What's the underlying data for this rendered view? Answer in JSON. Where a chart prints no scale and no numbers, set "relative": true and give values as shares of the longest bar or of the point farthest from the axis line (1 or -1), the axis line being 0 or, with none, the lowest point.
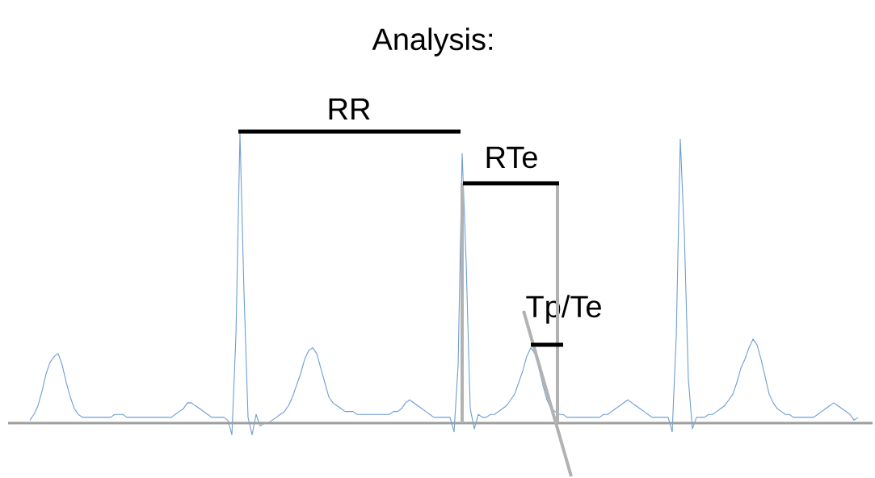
{
  "chart_data": {
    "type": "line",
    "title": "Analysis:",
    "annotations": [
      "RR",
      "RTe",
      "Tp/Te"
    ],
    "relative": true,
    "categories": [
      null,
      null,
      null,
      null,
      null,
      null,
      null,
      null,
      null,
      null,
      null,
      null,
      null,
      null,
      null,
      null,
      null,
      null,
      null,
      null,
      null,
      null,
      null,
      null,
      null,
      null,
      null,
      null,
      null,
      null,
      null,
      null,
      null,
      null,
      null,
      null,
      null,
      null,
      null,
      null,
      null,
      null,
      null,
      null,
      null,
      null,
      null,
      null,
      null,
      null,
      null,
      null,
      null,
      null,
      null,
      null,
      null,
      null,
      null,
      null,
      null,
      null,
      null,
      null,
      null,
      null,
      null,
      null,
      null,
      null,
      null,
      null,
      null,
      null,
      null,
      null,
      null,
      null,
      null,
      null,
      null,
      null,
      null,
      null,
      null,
      null,
      null,
      null,
      null,
      null,
      null,
      null,
      null,
      null,
      null,
      null,
      null,
      null,
      null,
      null,
      null,
      null,
      null,
      null,
      null,
      null,
      null,
      null,
      null,
      null,
      null,
      null,
      null,
      null,
      null,
      null,
      null,
      null,
      null,
      null,
      null,
      null,
      null,
      null,
      null,
      null,
      null,
      null,
      null,
      null,
      null,
      null,
      null,
      null,
      null,
      null,
      null,
      null,
      null,
      null,
      null,
      null,
      null,
      null,
      null,
      null,
      null,
      null,
      null,
      null,
      null,
      null,
      null,
      null,
      null,
      null,
      null,
      null,
      null,
      null,
      null,
      null,
      null,
      null,
      null,
      null,
      null,
      null,
      null,
      null,
      null,
      null,
      null,
      null,
      null,
      null,
      null,
      null,
      null,
      null,
      null,
      null,
      null,
      null,
      null,
      null,
      null,
      null,
      null,
      null,
      null,
      null,
      null,
      null,
      null,
      null,
      null,
      null,
      null,
      null,
      null,
      null,
      null,
      null,
      null,
      null
    ],
    "series": [
      {
        "color": "#6d9ed4",
        "values": [
          0.01,
          0.03,
          0.06,
          0.11,
          0.17,
          0.21,
          0.23,
          0.24,
          0.2,
          0.14,
          0.09,
          0.05,
          0.03,
          0.02,
          0.02,
          0.02,
          0.02,
          0.02,
          0.02,
          0.02,
          0.02,
          0.03,
          0.03,
          0.03,
          0.02,
          0.02,
          0.02,
          0.02,
          0.02,
          0.02,
          0.02,
          0.02,
          0.02,
          0.02,
          0.02,
          0.02,
          0.03,
          0.04,
          0.05,
          0.07,
          0.07,
          0.06,
          0.05,
          0.04,
          0.03,
          0.02,
          0.02,
          0.02,
          0.02,
          0.01,
          -0.04,
          0.3,
          1.0,
          0.45,
          0.02,
          -0.04,
          0.03,
          -0.01,
          0.0,
          0.0,
          0.01,
          0.02,
          0.03,
          0.04,
          0.06,
          0.09,
          0.13,
          0.17,
          0.22,
          0.25,
          0.26,
          0.24,
          0.19,
          0.14,
          0.09,
          0.07,
          0.06,
          0.05,
          0.04,
          0.04,
          0.04,
          0.03,
          0.03,
          0.03,
          0.03,
          0.03,
          0.03,
          0.03,
          0.03,
          0.03,
          0.04,
          0.04,
          0.05,
          0.07,
          0.08,
          0.07,
          0.06,
          0.05,
          0.04,
          0.03,
          0.02,
          0.02,
          0.02,
          0.02,
          0.02,
          -0.03,
          0.2,
          0.93,
          0.55,
          0.05,
          -0.02,
          0.03,
          0.02,
          0.02,
          0.03,
          0.03,
          0.04,
          0.05,
          0.06,
          0.08,
          0.1,
          0.14,
          0.18,
          0.23,
          0.26,
          0.24,
          0.19,
          0.13,
          0.08,
          0.05,
          0.04,
          0.03,
          0.03,
          0.02,
          0.02,
          0.02,
          0.02,
          0.02,
          0.02,
          0.02,
          0.02,
          0.02,
          0.03,
          0.03,
          0.04,
          0.05,
          0.06,
          0.07,
          0.08,
          0.07,
          0.06,
          0.05,
          0.04,
          0.03,
          0.02,
          0.02,
          0.02,
          0.02,
          0.02,
          -0.03,
          0.3,
          0.98,
          0.65,
          0.15,
          -0.02,
          0.02,
          0.02,
          0.02,
          0.03,
          0.03,
          0.04,
          0.05,
          0.06,
          0.08,
          0.1,
          0.14,
          0.19,
          0.22,
          0.26,
          0.29,
          0.27,
          0.22,
          0.16,
          0.1,
          0.07,
          0.05,
          0.04,
          0.03,
          0.03,
          0.02,
          0.02,
          0.02,
          0.02,
          0.02,
          0.02,
          0.03,
          0.04,
          0.05,
          0.06,
          0.07,
          0.06,
          0.05,
          0.04,
          0.03,
          0.01,
          0.02
        ]
      }
    ]
  }
}
